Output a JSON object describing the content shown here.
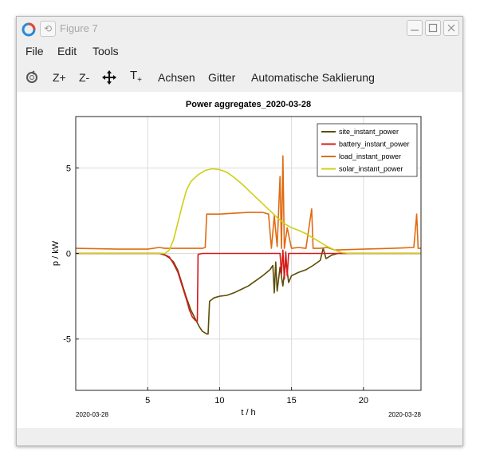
{
  "window": {
    "title": "Figure 7",
    "pin_glyph": "⟲"
  },
  "menu": {
    "items": [
      "File",
      "Edit",
      "Tools"
    ]
  },
  "toolbar": {
    "zoom_in": "Z+",
    "zoom_out": "Z-",
    "text_tool": "T",
    "text_tool_sub": "+",
    "axes": "Achsen",
    "grid": "Gitter",
    "autoscale": "Automatische Saklierung"
  },
  "chart_data": {
    "type": "line",
    "title": "Power aggregates_2020-03-28",
    "xlabel": "t / h",
    "ylabel": "p / kW",
    "xlim": [
      0,
      24
    ],
    "ylim": [
      -8,
      8
    ],
    "xticks": [
      5,
      10,
      15,
      20
    ],
    "yticks": [
      -5,
      0,
      5
    ],
    "date_left": "2020-03-28",
    "date_right": "2020-03-28",
    "grid": true,
    "legend_position": "top-right",
    "series": [
      {
        "name": "site_instant_power",
        "color": "#5b4d07",
        "points": [
          [
            0,
            0
          ],
          [
            5.8,
            0
          ],
          [
            6.2,
            -0.1
          ],
          [
            6.5,
            -0.25
          ],
          [
            6.8,
            -0.5
          ],
          [
            7.1,
            -1.0
          ],
          [
            7.4,
            -1.8
          ],
          [
            7.7,
            -2.6
          ],
          [
            8.0,
            -3.3
          ],
          [
            8.3,
            -3.8
          ],
          [
            8.6,
            -4.3
          ],
          [
            8.8,
            -4.55
          ],
          [
            9.1,
            -4.7
          ],
          [
            9.2,
            -4.7
          ],
          [
            9.3,
            -2.8
          ],
          [
            9.6,
            -2.6
          ],
          [
            10.0,
            -2.5
          ],
          [
            10.5,
            -2.45
          ],
          [
            11.0,
            -2.3
          ],
          [
            11.5,
            -2.1
          ],
          [
            12.0,
            -1.9
          ],
          [
            12.5,
            -1.6
          ],
          [
            13.0,
            -1.3
          ],
          [
            13.5,
            -0.95
          ],
          [
            13.7,
            -0.7
          ],
          [
            13.8,
            -2.3
          ],
          [
            13.9,
            -0.5
          ],
          [
            14.0,
            -2.2
          ],
          [
            14.2,
            -0.8
          ],
          [
            14.4,
            -1.9
          ],
          [
            14.6,
            -0.4
          ],
          [
            14.8,
            -1.7
          ],
          [
            15.0,
            -1.3
          ],
          [
            15.5,
            -1.1
          ],
          [
            16.0,
            -0.95
          ],
          [
            16.5,
            -0.7
          ],
          [
            17.0,
            -0.4
          ],
          [
            17.2,
            0.3
          ],
          [
            17.4,
            -0.3
          ],
          [
            17.8,
            -0.1
          ],
          [
            18.2,
            0
          ],
          [
            24,
            0
          ]
        ]
      },
      {
        "name": "battery_instant_power",
        "color": "#d81b1b",
        "points": [
          [
            0,
            0
          ],
          [
            6.0,
            0
          ],
          [
            6.5,
            -0.2
          ],
          [
            6.8,
            -0.6
          ],
          [
            7.1,
            -1.1
          ],
          [
            7.4,
            -1.9
          ],
          [
            7.7,
            -2.7
          ],
          [
            7.9,
            -3.3
          ],
          [
            8.1,
            -3.7
          ],
          [
            8.3,
            -3.9
          ],
          [
            8.45,
            -3.95
          ],
          [
            8.5,
            -0.05
          ],
          [
            8.8,
            0
          ],
          [
            14.2,
            0
          ],
          [
            14.3,
            -1.2
          ],
          [
            14.4,
            0.2
          ],
          [
            14.5,
            -1.5
          ],
          [
            14.6,
            0.1
          ],
          [
            14.7,
            -1.3
          ],
          [
            14.8,
            0
          ],
          [
            15.0,
            0
          ],
          [
            24,
            0
          ]
        ]
      },
      {
        "name": "load_instant_power",
        "color": "#e06b12",
        "points": [
          [
            0,
            0.3
          ],
          [
            3.0,
            0.25
          ],
          [
            5.0,
            0.25
          ],
          [
            5.8,
            0.35
          ],
          [
            6.2,
            0.3
          ],
          [
            8.8,
            0.3
          ],
          [
            9.0,
            0.35
          ],
          [
            9.1,
            2.3
          ],
          [
            10.0,
            2.3
          ],
          [
            11.0,
            2.35
          ],
          [
            12.0,
            2.4
          ],
          [
            13.0,
            2.4
          ],
          [
            13.4,
            2.3
          ],
          [
            13.6,
            0.3
          ],
          [
            13.8,
            2.2
          ],
          [
            14.0,
            0.4
          ],
          [
            14.2,
            4.5
          ],
          [
            14.3,
            0.3
          ],
          [
            14.4,
            5.7
          ],
          [
            14.5,
            0.3
          ],
          [
            14.7,
            1.5
          ],
          [
            15.0,
            0.3
          ],
          [
            15.5,
            0.35
          ],
          [
            16.0,
            0.3
          ],
          [
            16.4,
            2.6
          ],
          [
            16.5,
            0.3
          ],
          [
            17.0,
            0.3
          ],
          [
            17.5,
            0.35
          ],
          [
            18.0,
            0.2
          ],
          [
            20.0,
            0.25
          ],
          [
            22.0,
            0.3
          ],
          [
            23.5,
            0.35
          ],
          [
            23.7,
            2.3
          ],
          [
            23.8,
            0.3
          ],
          [
            24,
            0.3
          ]
        ]
      },
      {
        "name": "solar_instant_power",
        "color": "#cfcf15",
        "points": [
          [
            0,
            0
          ],
          [
            6.2,
            0
          ],
          [
            6.5,
            0.2
          ],
          [
            6.8,
            0.8
          ],
          [
            7.1,
            1.8
          ],
          [
            7.4,
            2.8
          ],
          [
            7.7,
            3.7
          ],
          [
            8.0,
            4.2
          ],
          [
            8.5,
            4.6
          ],
          [
            9.0,
            4.85
          ],
          [
            9.5,
            4.95
          ],
          [
            10.0,
            4.9
          ],
          [
            10.5,
            4.75
          ],
          [
            11.0,
            4.45
          ],
          [
            11.5,
            4.1
          ],
          [
            12.0,
            3.7
          ],
          [
            12.5,
            3.3
          ],
          [
            13.0,
            2.9
          ],
          [
            13.5,
            2.5
          ],
          [
            14.0,
            2.1
          ],
          [
            14.5,
            1.75
          ],
          [
            15.0,
            1.5
          ],
          [
            15.5,
            1.35
          ],
          [
            16.0,
            1.15
          ],
          [
            16.5,
            0.9
          ],
          [
            17.0,
            0.65
          ],
          [
            17.5,
            0.4
          ],
          [
            18.0,
            0.2
          ],
          [
            18.5,
            0.05
          ],
          [
            19.0,
            0
          ],
          [
            24,
            0
          ]
        ]
      }
    ]
  }
}
